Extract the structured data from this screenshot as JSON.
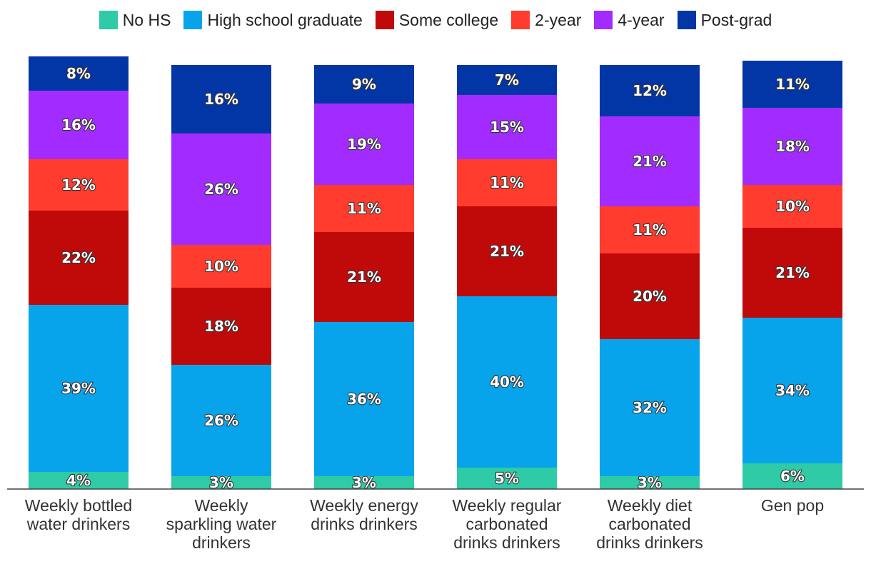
{
  "chart_data": {
    "type": "bar",
    "stacked": true,
    "legend_position": "top",
    "title": "",
    "xlabel": "",
    "ylabel": "",
    "ylim": [
      0,
      100
    ],
    "categories": [
      [
        "Weekly bottled",
        "water drinkers"
      ],
      [
        "Weekly",
        "sparkling water",
        "drinkers"
      ],
      [
        "Weekly energy",
        "drinks drinkers"
      ],
      [
        "Weekly regular",
        "carbonated",
        "drinks drinkers"
      ],
      [
        "Weekly diet",
        "carbonated",
        "drinks drinkers"
      ],
      [
        "Gen pop"
      ]
    ],
    "series": [
      {
        "name": "No HS",
        "color": "#2ecba6",
        "values": [
          4,
          3,
          3,
          5,
          3,
          6
        ]
      },
      {
        "name": "High school graduate",
        "color": "#07a4ec",
        "values": [
          39,
          26,
          36,
          40,
          32,
          34
        ]
      },
      {
        "name": "Some college",
        "color": "#c00a0a",
        "values": [
          22,
          18,
          21,
          21,
          20,
          21
        ]
      },
      {
        "name": "2-year",
        "color": "#ff3c2e",
        "values": [
          12,
          10,
          11,
          11,
          11,
          10
        ]
      },
      {
        "name": "4-year",
        "color": "#a22cff",
        "values": [
          16,
          26,
          19,
          15,
          21,
          18
        ]
      },
      {
        "name": "Post-grad",
        "color": "#0236a6",
        "values": [
          8,
          16,
          9,
          7,
          12,
          11
        ]
      }
    ],
    "value_suffix": "%"
  }
}
